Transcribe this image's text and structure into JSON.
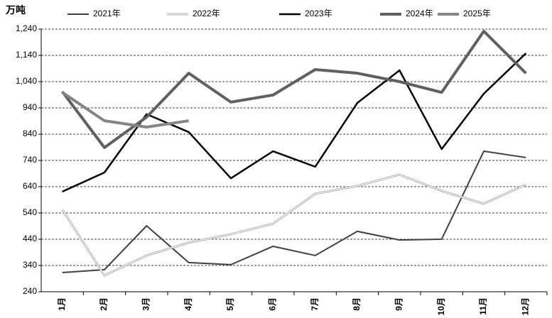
{
  "chart_data": {
    "type": "line",
    "y_label": "万吨",
    "categories": [
      "1月",
      "2月",
      "3月",
      "4月",
      "5月",
      "6月",
      "7月",
      "8月",
      "9月",
      "10月",
      "11月",
      "12月"
    ],
    "series": [
      {
        "name": "2021年",
        "color": "#404040",
        "width": 2,
        "values": [
          313,
          324,
          491,
          351,
          343,
          413,
          378,
          470,
          437,
          440,
          775,
          751
        ]
      },
      {
        "name": "2022年",
        "color": "#b0b0b0",
        "width": 3,
        "double": true,
        "values": [
          553,
          302,
          378,
          427,
          459,
          499,
          613,
          643,
          686,
          624,
          575,
          648
        ]
      },
      {
        "name": "2023年",
        "color": "#000000",
        "width": 2.5,
        "values": [
          621,
          694,
          916,
          848,
          672,
          775,
          716,
          959,
          1083,
          783,
          994,
          1148
        ]
      },
      {
        "name": "2024年",
        "color": "#606060",
        "width": 4,
        "values": [
          1002,
          789,
          905,
          1072,
          962,
          989,
          1086,
          1072,
          1040,
          999,
          1232,
          1072
        ]
      },
      {
        "name": "2025年",
        "color": "#858585",
        "width": 4,
        "values": [
          999,
          891,
          867,
          891,
          null,
          null,
          null,
          null,
          null,
          null,
          null,
          null
        ]
      }
    ],
    "ylim": [
      240,
      1240
    ],
    "yticks": [
      240,
      340,
      {
        "value": 440,
        "label": "440"
      },
      540,
      640,
      740,
      840,
      940,
      {
        "value": 1040,
        "label": "1,040"
      },
      {
        "value": 1140,
        "label": "1,140"
      },
      {
        "value": 1240,
        "label": "1,240"
      }
    ],
    "grid": true
  }
}
